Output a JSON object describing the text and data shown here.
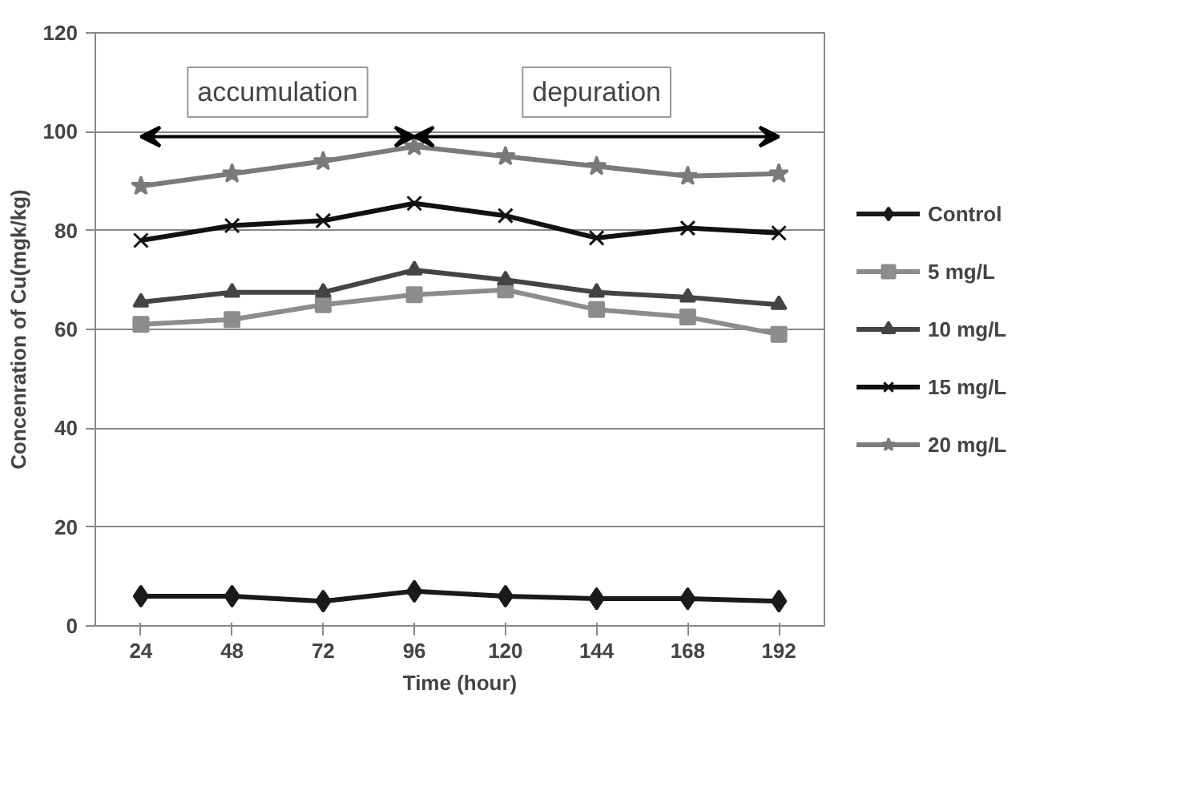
{
  "chart_data": {
    "type": "line",
    "xlabel": "Time (hour)",
    "ylabel": "Concenration of Cu(mgk/kg)",
    "categories": [
      "24",
      "48",
      "72",
      "96",
      "120",
      "144",
      "168",
      "192"
    ],
    "ylim": [
      0,
      120
    ],
    "yticks": [
      0,
      20,
      40,
      60,
      80,
      100,
      120
    ],
    "grid": "y",
    "legend": "right",
    "line_style": "solid",
    "series": [
      {
        "name": "Control",
        "color": "#1a1a1a",
        "marker": "diamond",
        "values": [
          6,
          6,
          5,
          7,
          6,
          5.5,
          5.5,
          5
        ]
      },
      {
        "name": "5 mg/L",
        "color": "#8c8c8c",
        "marker": "square",
        "values": [
          61,
          62,
          65,
          67,
          68,
          64,
          62.5,
          59
        ]
      },
      {
        "name": "10 mg/L",
        "color": "#444444",
        "marker": "triangle",
        "values": [
          65.5,
          67.5,
          67.5,
          72,
          70,
          67.5,
          66.5,
          65
        ]
      },
      {
        "name": "15 mg/L",
        "color": "#111111",
        "marker": "cross",
        "values": [
          78,
          81,
          82,
          85.5,
          83,
          78.5,
          80.5,
          79.5
        ]
      },
      {
        "name": "20 mg/L",
        "color": "#7a7a7a",
        "marker": "star",
        "values": [
          89,
          91.5,
          94,
          97,
          95,
          93,
          91,
          91.5
        ]
      }
    ],
    "annotations": [
      "accumulation",
      "depuration"
    ]
  }
}
